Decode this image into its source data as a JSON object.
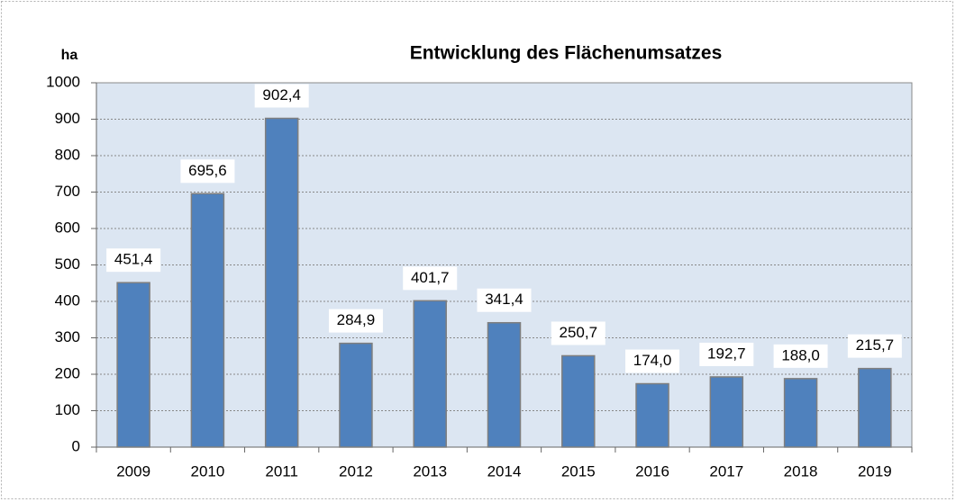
{
  "chart_data": {
    "type": "bar",
    "title": "Entwicklung des Flächenumsatzes",
    "y_label": "ha",
    "categories": [
      "2009",
      "2010",
      "2011",
      "2012",
      "2013",
      "2014",
      "2015",
      "2016",
      "2017",
      "2018",
      "2019"
    ],
    "values": [
      451.4,
      695.6,
      902.4,
      284.9,
      401.7,
      341.4,
      250.7,
      174.0,
      192.7,
      188.0,
      215.7
    ],
    "value_labels": [
      "451,4",
      "695,6",
      "902,4",
      "284,9",
      "401,7",
      "341,4",
      "250,7",
      "174,0",
      "192,7",
      "188,0",
      "215,7"
    ],
    "color": "#4f81bd",
    "ylim": [
      0,
      1000
    ],
    "yticks": [
      0,
      100,
      200,
      300,
      400,
      500,
      600,
      700,
      800,
      900,
      1000
    ],
    "grid": true
  }
}
